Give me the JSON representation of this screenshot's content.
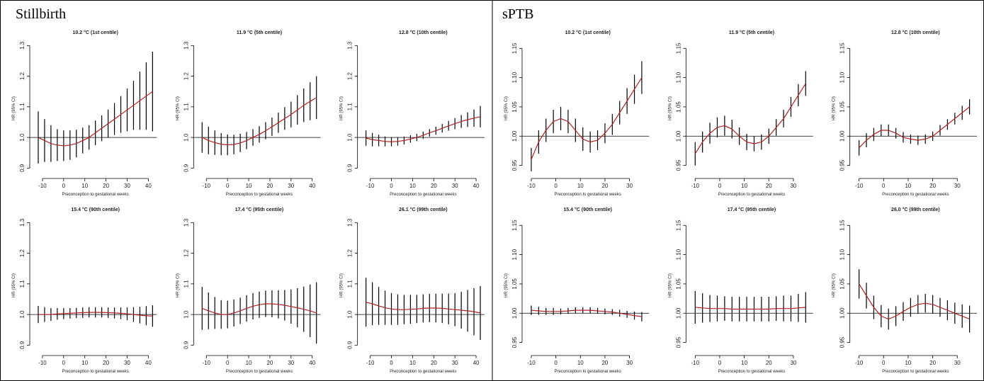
{
  "panels": [
    {
      "title": "Stillbirth"
    },
    {
      "title": "sPTB"
    }
  ],
  "chart_data": [
    {
      "type": "errorbar",
      "title": "10.2 °C (1st centile)",
      "xlabel": "Preconception to gestational weeks",
      "ylabel": "HR (95% CI)",
      "color": "#b22222",
      "bar_color": "#000000",
      "hline": 1,
      "x": [
        -12,
        -9,
        -6,
        -3,
        0,
        3,
        6,
        9,
        12,
        15,
        18,
        21,
        24,
        27,
        30,
        33,
        36,
        39,
        42
      ],
      "values": [
        1.0,
        0.99,
        0.98,
        0.975,
        0.973,
        0.975,
        0.98,
        0.99,
        1.0,
        1.015,
        1.03,
        1.045,
        1.06,
        1.075,
        1.09,
        1.105,
        1.12,
        1.135,
        1.15
      ],
      "errors": [
        0.085,
        0.07,
        0.06,
        0.052,
        0.05,
        0.048,
        0.045,
        0.042,
        0.04,
        0.04,
        0.042,
        0.046,
        0.052,
        0.06,
        0.07,
        0.08,
        0.095,
        0.11,
        0.13
      ],
      "xlim": [
        -14,
        44
      ],
      "xticks": [
        -10,
        0,
        10,
        20,
        30,
        40
      ],
      "ylim": [
        0.88,
        1.31
      ],
      "yticks": [
        0.9,
        {
          "value": 1,
          "label": "1.0"
        },
        1.1,
        1.2,
        1.3
      ]
    },
    {
      "type": "errorbar",
      "title": "11.9 °C (5th centile)",
      "xlabel": "Preconception to gestational weeks",
      "ylabel": "HR (95% CI)",
      "color": "#b22222",
      "bar_color": "#000000",
      "hline": 1,
      "x": [
        -12,
        -9,
        -6,
        -3,
        0,
        3,
        6,
        9,
        12,
        15,
        18,
        21,
        24,
        27,
        30,
        33,
        36,
        39,
        42
      ],
      "values": [
        1.0,
        0.99,
        0.983,
        0.978,
        0.976,
        0.977,
        0.982,
        0.99,
        1.0,
        1.01,
        1.022,
        1.035,
        1.048,
        1.062,
        1.075,
        1.09,
        1.105,
        1.118,
        1.13
      ],
      "errors": [
        0.05,
        0.045,
        0.04,
        0.036,
        0.034,
        0.032,
        0.03,
        0.028,
        0.027,
        0.027,
        0.028,
        0.03,
        0.033,
        0.037,
        0.042,
        0.048,
        0.055,
        0.062,
        0.07
      ],
      "xlim": [
        -14,
        44
      ],
      "xticks": [
        -10,
        0,
        10,
        20,
        30,
        40
      ],
      "ylim": [
        0.88,
        1.31
      ],
      "yticks": [
        0.9,
        {
          "value": 1,
          "label": "1.0"
        },
        1.1,
        1.2,
        1.3
      ]
    },
    {
      "type": "errorbar",
      "title": "12.8 °C (10th centile)",
      "xlabel": "Preconception to gestational weeks",
      "ylabel": "HR (95% CI)",
      "color": "#b22222",
      "bar_color": "#000000",
      "hline": 1,
      "x": [
        -12,
        -9,
        -6,
        -3,
        0,
        3,
        6,
        9,
        12,
        15,
        18,
        21,
        24,
        27,
        30,
        33,
        36,
        39,
        42
      ],
      "values": [
        0.998,
        0.993,
        0.99,
        0.987,
        0.986,
        0.987,
        0.99,
        0.995,
        1.0,
        1.007,
        1.015,
        1.022,
        1.03,
        1.038,
        1.045,
        1.052,
        1.058,
        1.063,
        1.068
      ],
      "errors": [
        0.025,
        0.022,
        0.019,
        0.016,
        0.015,
        0.014,
        0.013,
        0.012,
        0.012,
        0.012,
        0.012,
        0.013,
        0.014,
        0.016,
        0.018,
        0.021,
        0.024,
        0.028,
        0.035
      ],
      "xlim": [
        -14,
        44
      ],
      "xticks": [
        -10,
        0,
        10,
        20,
        30,
        40
      ],
      "ylim": [
        0.88,
        1.31
      ],
      "yticks": [
        0.9,
        {
          "value": 1,
          "label": "1.0"
        },
        1.1,
        1.2,
        1.3
      ]
    },
    {
      "type": "errorbar",
      "title": "15.4 °C (90th centile)",
      "xlabel": "Preconception to gestational weeks",
      "ylabel": "HR (95% CI)",
      "color": "#b22222",
      "bar_color": "#000000",
      "hline": 1,
      "x": [
        -12,
        -9,
        -6,
        -3,
        0,
        3,
        6,
        9,
        12,
        15,
        18,
        21,
        24,
        27,
        30,
        33,
        36,
        39,
        42
      ],
      "values": [
        1.0,
        1.0,
        1.0,
        1.002,
        1.003,
        1.004,
        1.005,
        1.006,
        1.007,
        1.007,
        1.007,
        1.006,
        1.005,
        1.004,
        1.002,
        1.0,
        0.998,
        0.996,
        0.995
      ],
      "errors": [
        0.028,
        0.024,
        0.021,
        0.019,
        0.018,
        0.017,
        0.017,
        0.017,
        0.017,
        0.017,
        0.017,
        0.017,
        0.018,
        0.019,
        0.021,
        0.024,
        0.027,
        0.031,
        0.035
      ],
      "xlim": [
        -14,
        44
      ],
      "xticks": [
        -10,
        0,
        10,
        20,
        30,
        40
      ],
      "ylim": [
        0.88,
        1.31
      ],
      "yticks": [
        0.9,
        {
          "value": 1,
          "label": "1.0"
        },
        1.1,
        1.2,
        1.3
      ]
    },
    {
      "type": "errorbar",
      "title": "17.4 °C (95th centile)",
      "xlabel": "Preconception to gestational weeks",
      "ylabel": "HR (95% CI)",
      "color": "#b22222",
      "bar_color": "#000000",
      "hline": 1,
      "x": [
        -12,
        -9,
        -6,
        -3,
        0,
        3,
        6,
        9,
        12,
        15,
        18,
        21,
        24,
        27,
        30,
        33,
        36,
        39,
        42
      ],
      "values": [
        1.02,
        1.012,
        1.005,
        1.0,
        1.0,
        1.005,
        1.012,
        1.02,
        1.027,
        1.032,
        1.035,
        1.035,
        1.033,
        1.03,
        1.026,
        1.022,
        1.017,
        1.012,
        1.005
      ],
      "errors": [
        0.07,
        0.06,
        0.052,
        0.047,
        0.045,
        0.044,
        0.043,
        0.043,
        0.043,
        0.043,
        0.043,
        0.044,
        0.046,
        0.05,
        0.056,
        0.064,
        0.074,
        0.086,
        0.1
      ],
      "xlim": [
        -14,
        44
      ],
      "xticks": [
        -10,
        0,
        10,
        20,
        30,
        40
      ],
      "ylim": [
        0.88,
        1.31
      ],
      "yticks": [
        0.9,
        {
          "value": 1,
          "label": "1.0"
        },
        1.1,
        1.2,
        1.3
      ]
    },
    {
      "type": "errorbar",
      "title": "26.1 °C (99th centile)",
      "xlabel": "Preconception to gestational weeks",
      "ylabel": "HR (95% CI)",
      "color": "#b22222",
      "bar_color": "#000000",
      "hline": 1,
      "x": [
        -12,
        -9,
        -6,
        -3,
        0,
        3,
        6,
        9,
        12,
        15,
        18,
        21,
        24,
        27,
        30,
        33,
        36,
        39,
        42
      ],
      "values": [
        1.04,
        1.035,
        1.028,
        1.022,
        1.018,
        1.016,
        1.016,
        1.017,
        1.018,
        1.02,
        1.021,
        1.021,
        1.02,
        1.018,
        1.016,
        1.014,
        1.012,
        1.009,
        1.005
      ],
      "errors": [
        0.08,
        0.07,
        0.062,
        0.056,
        0.052,
        0.05,
        0.048,
        0.047,
        0.046,
        0.046,
        0.046,
        0.047,
        0.048,
        0.05,
        0.054,
        0.06,
        0.068,
        0.077,
        0.088
      ],
      "xlim": [
        -14,
        44
      ],
      "xticks": [
        -10,
        0,
        10,
        20,
        30,
        40
      ],
      "ylim": [
        0.88,
        1.31
      ],
      "yticks": [
        0.9,
        {
          "value": 1,
          "label": "1.0"
        },
        1.1,
        1.2,
        1.3
      ]
    },
    {
      "type": "errorbar",
      "title": "10.2 °C (1st centile)",
      "xlabel": "Preconception to gestational weeks",
      "ylabel": "HR (95% CI)",
      "color": "#b22222",
      "bar_color": "#000000",
      "hline": 1,
      "x": [
        -10,
        -7,
        -4,
        -1,
        2,
        5,
        8,
        11,
        14,
        17,
        20,
        23,
        26,
        29,
        32,
        35
      ],
      "values": [
        0.96,
        0.99,
        1.01,
        1.025,
        1.03,
        1.025,
        1.01,
        0.995,
        0.99,
        0.993,
        1.005,
        1.02,
        1.04,
        1.06,
        1.08,
        1.1
      ],
      "errors": [
        0.02,
        0.02,
        0.02,
        0.02,
        0.02,
        0.02,
        0.02,
        0.02,
        0.018,
        0.017,
        0.017,
        0.018,
        0.02,
        0.022,
        0.025,
        0.028
      ],
      "xlim": [
        -12,
        38
      ],
      "xticks": [
        -10,
        0,
        10,
        20,
        30
      ],
      "ylim": [
        0.935,
        1.16
      ],
      "yticks": [
        0.95,
        {
          "value": 1,
          "label": "1.00"
        },
        1.05,
        {
          "value": 1.1,
          "label": "1.10"
        },
        1.15
      ]
    },
    {
      "type": "errorbar",
      "title": "11.9 °C (5th centile)",
      "xlabel": "Preconception to gestational weeks",
      "ylabel": "HR (95% CI)",
      "color": "#b22222",
      "bar_color": "#000000",
      "hline": 1,
      "x": [
        -10,
        -7,
        -4,
        -1,
        2,
        5,
        8,
        11,
        14,
        17,
        20,
        23,
        26,
        29,
        32,
        35
      ],
      "values": [
        0.97,
        0.99,
        1.005,
        1.015,
        1.018,
        1.012,
        1.0,
        0.99,
        0.987,
        0.99,
        1.0,
        1.015,
        1.03,
        1.05,
        1.07,
        1.09
      ],
      "errors": [
        0.02,
        0.018,
        0.018,
        0.017,
        0.017,
        0.016,
        0.015,
        0.014,
        0.013,
        0.013,
        0.013,
        0.014,
        0.015,
        0.017,
        0.019,
        0.021
      ],
      "xlim": [
        -12,
        38
      ],
      "xticks": [
        -10,
        0,
        10,
        20,
        30
      ],
      "ylim": [
        0.935,
        1.16
      ],
      "yticks": [
        0.95,
        {
          "value": 1,
          "label": "1.00"
        },
        1.05,
        {
          "value": 1.1,
          "label": "1.10"
        },
        1.15
      ]
    },
    {
      "type": "errorbar",
      "title": "12.8 °C (10th centile)",
      "xlabel": "Preconception to gestational weeks",
      "ylabel": "HR (95% CI)",
      "color": "#b22222",
      "bar_color": "#000000",
      "hline": 1,
      "x": [
        -10,
        -7,
        -4,
        -1,
        2,
        5,
        8,
        11,
        14,
        17,
        20,
        23,
        26,
        29,
        32,
        35
      ],
      "values": [
        0.98,
        0.993,
        1.003,
        1.01,
        1.01,
        1.005,
        0.998,
        0.995,
        0.993,
        0.995,
        1.0,
        1.01,
        1.02,
        1.03,
        1.04,
        1.05
      ],
      "errors": [
        0.013,
        0.012,
        0.011,
        0.01,
        0.01,
        0.009,
        0.009,
        0.008,
        0.008,
        0.008,
        0.008,
        0.009,
        0.009,
        0.01,
        0.012,
        0.013
      ],
      "xlim": [
        -12,
        38
      ],
      "xticks": [
        -10,
        0,
        10,
        20,
        30
      ],
      "ylim": [
        0.935,
        1.16
      ],
      "yticks": [
        0.95,
        {
          "value": 1,
          "label": "1.00"
        },
        1.05,
        {
          "value": 1.1,
          "label": "1.10"
        },
        1.15
      ]
    },
    {
      "type": "errorbar",
      "title": "15.4 °C (90th centile)",
      "xlabel": "Preconception to gestational weeks",
      "ylabel": "HR (95% CI)",
      "color": "#b22222",
      "bar_color": "#000000",
      "hline": 1,
      "x": [
        -10,
        -7,
        -4,
        -1,
        2,
        5,
        8,
        11,
        14,
        17,
        20,
        23,
        26,
        29,
        32,
        35
      ],
      "values": [
        1.005,
        1.004,
        1.003,
        1.003,
        1.003,
        1.004,
        1.005,
        1.005,
        1.005,
        1.004,
        1.003,
        1.002,
        1.0,
        0.998,
        0.996,
        0.994
      ],
      "errors": [
        0.008,
        0.007,
        0.006,
        0.006,
        0.005,
        0.005,
        0.005,
        0.005,
        0.005,
        0.005,
        0.005,
        0.005,
        0.006,
        0.006,
        0.007,
        0.008
      ],
      "xlim": [
        -12,
        38
      ],
      "xticks": [
        -10,
        0,
        10,
        20,
        30
      ],
      "ylim": [
        0.935,
        1.16
      ],
      "yticks": [
        0.95,
        {
          "value": 1,
          "label": "1.00"
        },
        1.05,
        {
          "value": 1.1,
          "label": "1.10"
        },
        1.15
      ]
    },
    {
      "type": "errorbar",
      "title": "17.4 °C (95th centile)",
      "xlabel": "Preconception to gestational weeks",
      "ylabel": "HR (95% CI)",
      "color": "#b22222",
      "bar_color": "#000000",
      "hline": 1,
      "x": [
        -10,
        -7,
        -4,
        -1,
        2,
        5,
        8,
        11,
        14,
        17,
        20,
        23,
        26,
        29,
        32,
        35
      ],
      "values": [
        1.01,
        1.009,
        1.008,
        1.008,
        1.008,
        1.007,
        1.007,
        1.007,
        1.007,
        1.007,
        1.007,
        1.008,
        1.008,
        1.008,
        1.009,
        1.01
      ],
      "errors": [
        0.028,
        0.025,
        0.023,
        0.022,
        0.021,
        0.021,
        0.021,
        0.021,
        0.021,
        0.021,
        0.021,
        0.021,
        0.022,
        0.022,
        0.024,
        0.026
      ],
      "xlim": [
        -12,
        38
      ],
      "xticks": [
        -10,
        0,
        10,
        20,
        30
      ],
      "ylim": [
        0.935,
        1.16
      ],
      "yticks": [
        0.95,
        {
          "value": 1,
          "label": "1.00"
        },
        1.05,
        {
          "value": 1.1,
          "label": "1.10"
        },
        1.15
      ]
    },
    {
      "type": "errorbar",
      "title": "26.0 °C (99th centile)",
      "xlabel": "Preconception to gestational weeks",
      "ylabel": "HR (95% CI)",
      "color": "#b22222",
      "bar_color": "#000000",
      "hline": 1,
      "x": [
        -10,
        -7,
        -4,
        -1,
        2,
        5,
        8,
        11,
        14,
        17,
        20,
        23,
        26,
        29,
        32,
        35
      ],
      "values": [
        1.05,
        1.03,
        1.01,
        0.995,
        0.99,
        0.995,
        1.003,
        1.01,
        1.015,
        1.017,
        1.015,
        1.01,
        1.005,
        1.0,
        0.995,
        0.99
      ],
      "errors": [
        0.025,
        0.022,
        0.02,
        0.019,
        0.018,
        0.017,
        0.016,
        0.016,
        0.016,
        0.016,
        0.016,
        0.016,
        0.017,
        0.018,
        0.02,
        0.023
      ],
      "xlim": [
        -12,
        38
      ],
      "xticks": [
        -10,
        0,
        10,
        20,
        30
      ],
      "ylim": [
        0.935,
        1.16
      ],
      "yticks": [
        0.95,
        {
          "value": 1,
          "label": "1.00"
        },
        1.05,
        {
          "value": 1.1,
          "label": "1.10"
        },
        1.15
      ]
    }
  ]
}
